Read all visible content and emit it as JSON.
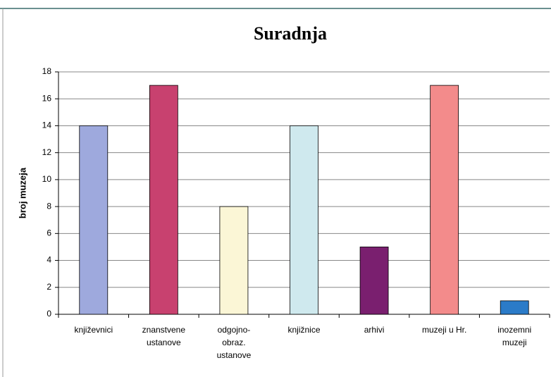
{
  "chart_data": {
    "type": "bar",
    "title": "Suradnja",
    "y_label": "broj muzeja",
    "categories": [
      "književnici",
      "znanstvene\nustanove",
      "odgojno-\nobraz.\nustanove",
      "knjižnice",
      "arhivi",
      "muzeji u Hr.",
      "inozemni\nmuzeji"
    ],
    "values": [
      14,
      17,
      8,
      14,
      5,
      17,
      1
    ],
    "colors": [
      "#9ea9dd",
      "#c8416f",
      "#fbf6d6",
      "#cfe9ee",
      "#7a1f6f",
      "#f38b8b",
      "#2b7bc8"
    ],
    "ylim": [
      0,
      18
    ],
    "yticks": [
      0,
      2,
      4,
      6,
      8,
      10,
      12,
      14,
      16,
      18
    ],
    "grid": true
  }
}
